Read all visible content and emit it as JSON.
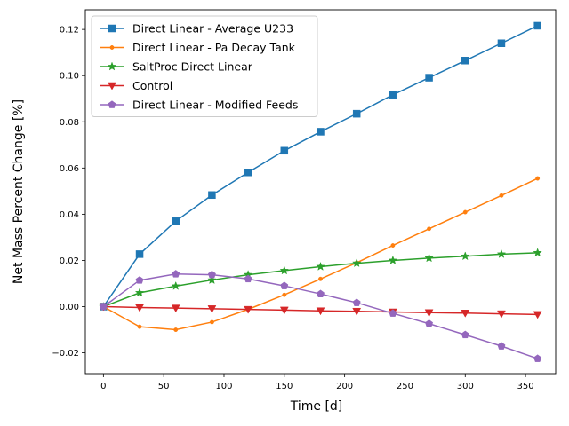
{
  "chart_data": {
    "type": "line",
    "title": "",
    "xlabel": "Time [d]",
    "ylabel": "Net Mass Percent Change [%]",
    "xlim": [
      -15,
      375
    ],
    "ylim": [
      -0.029,
      0.1285
    ],
    "xticks": [
      0,
      50,
      100,
      150,
      200,
      250,
      300,
      350
    ],
    "xtick_labels": [
      "0",
      "50",
      "100",
      "150",
      "200",
      "250",
      "300",
      "350"
    ],
    "yticks": [
      -0.02,
      0.0,
      0.02,
      0.04,
      0.06,
      0.08,
      0.1,
      0.12
    ],
    "ytick_labels": [
      "−0.02",
      "0.00",
      "0.02",
      "0.04",
      "0.06",
      "0.08",
      "0.10",
      "0.12"
    ],
    "grid": false,
    "legend_position": "upper-left",
    "x": [
      0,
      30,
      60,
      90,
      120,
      150,
      180,
      210,
      240,
      270,
      300,
      330,
      360
    ],
    "series": [
      {
        "name": "Direct Linear - Average U233",
        "color": "#1f77b4",
        "marker": "square",
        "values": [
          0.0,
          0.0227,
          0.037,
          0.0483,
          0.0581,
          0.0675,
          0.0757,
          0.0835,
          0.0917,
          0.0991,
          0.1065,
          0.114,
          0.1216
        ]
      },
      {
        "name": "Direct Linear - Pa Decay Tank",
        "color": "#ff7f0e",
        "marker": "dot",
        "values": [
          0.0,
          -0.0087,
          -0.01,
          -0.0067,
          -0.0012,
          0.0051,
          0.012,
          0.019,
          0.0265,
          0.0337,
          0.0409,
          0.0481,
          0.0555
        ]
      },
      {
        "name": "SaltProc Direct Linear",
        "color": "#2ca02c",
        "marker": "star",
        "values": [
          0.0,
          0.006,
          0.0089,
          0.0115,
          0.0138,
          0.0156,
          0.0173,
          0.0188,
          0.02,
          0.021,
          0.0218,
          0.0227,
          0.0233
        ]
      },
      {
        "name": "Control",
        "color": "#d62728",
        "marker": "triangle-down",
        "values": [
          0.0,
          -0.0004,
          -0.0006,
          -0.0009,
          -0.0012,
          -0.0015,
          -0.0018,
          -0.002,
          -0.0023,
          -0.0026,
          -0.0028,
          -0.0031,
          -0.0034
        ]
      },
      {
        "name": "Direct Linear - Modified Feeds",
        "color": "#9467bd",
        "marker": "pentagon",
        "values": [
          0.0,
          0.0114,
          0.0141,
          0.0138,
          0.012,
          0.009,
          0.0055,
          0.0017,
          -0.0029,
          -0.0074,
          -0.0122,
          -0.0171,
          -0.0225
        ]
      }
    ]
  }
}
